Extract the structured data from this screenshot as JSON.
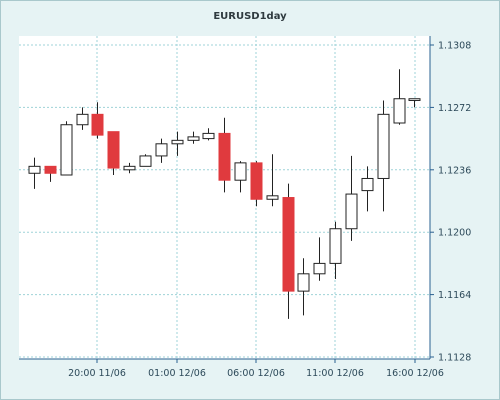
{
  "chart_data": {
    "type": "candlestick",
    "title": "EURUSD1day",
    "y_ticks": [
      "1.1308",
      "1.1272",
      "1.1236",
      "1.1200",
      "1.1164",
      "1.1128"
    ],
    "x_ticks": [
      "20:00 11/06",
      "01:00 12/06",
      "06:00 12/06",
      "11:00 12/06",
      "16:00 12/06"
    ],
    "ylim": [
      1.1128,
      1.1308
    ],
    "grid": true,
    "colors": {
      "bull": "#ffffff",
      "bear": "#e03a3e",
      "outline": "#222222",
      "grid": "#9fd3d8",
      "axis": "#2a6090"
    },
    "series": [
      {
        "o": 1.1234,
        "h": 1.1243,
        "l": 1.1225,
        "c": 1.1238
      },
      {
        "o": 1.1238,
        "h": 1.1238,
        "l": 1.1229,
        "c": 1.1234
      },
      {
        "o": 1.1233,
        "h": 1.1264,
        "l": 1.1233,
        "c": 1.1262
      },
      {
        "o": 1.1262,
        "h": 1.1272,
        "l": 1.1259,
        "c": 1.1268
      },
      {
        "o": 1.1268,
        "h": 1.1275,
        "l": 1.1254,
        "c": 1.1256
      },
      {
        "o": 1.1258,
        "h": 1.1258,
        "l": 1.1233,
        "c": 1.1237
      },
      {
        "o": 1.1236,
        "h": 1.124,
        "l": 1.1234,
        "c": 1.1238
      },
      {
        "o": 1.1238,
        "h": 1.1245,
        "l": 1.1238,
        "c": 1.1244
      },
      {
        "o": 1.1244,
        "h": 1.1254,
        "l": 1.124,
        "c": 1.1251
      },
      {
        "o": 1.1251,
        "h": 1.1258,
        "l": 1.1244,
        "c": 1.1253
      },
      {
        "o": 1.1253,
        "h": 1.1258,
        "l": 1.1251,
        "c": 1.1255
      },
      {
        "o": 1.1254,
        "h": 1.126,
        "l": 1.1253,
        "c": 1.1257
      },
      {
        "o": 1.1257,
        "h": 1.1266,
        "l": 1.1223,
        "c": 1.123
      },
      {
        "o": 1.123,
        "h": 1.1241,
        "l": 1.1223,
        "c": 1.124
      },
      {
        "o": 1.124,
        "h": 1.1241,
        "l": 1.1215,
        "c": 1.1219
      },
      {
        "o": 1.1219,
        "h": 1.1245,
        "l": 1.1215,
        "c": 1.1221
      },
      {
        "o": 1.122,
        "h": 1.1228,
        "l": 1.115,
        "c": 1.1166
      },
      {
        "o": 1.1166,
        "h": 1.1185,
        "l": 1.1152,
        "c": 1.1176
      },
      {
        "o": 1.1176,
        "h": 1.1197,
        "l": 1.1172,
        "c": 1.1182
      },
      {
        "o": 1.1182,
        "h": 1.1206,
        "l": 1.1173,
        "c": 1.1202
      },
      {
        "o": 1.1202,
        "h": 1.1244,
        "l": 1.1195,
        "c": 1.1222
      },
      {
        "o": 1.1224,
        "h": 1.1238,
        "l": 1.1212,
        "c": 1.1231
      },
      {
        "o": 1.1231,
        "h": 1.1276,
        "l": 1.1212,
        "c": 1.1268
      },
      {
        "o": 1.1263,
        "h": 1.1294,
        "l": 1.1262,
        "c": 1.1277
      },
      {
        "o": 1.1276,
        "h": 1.1277,
        "l": 1.1272,
        "c": 1.1277
      }
    ]
  }
}
